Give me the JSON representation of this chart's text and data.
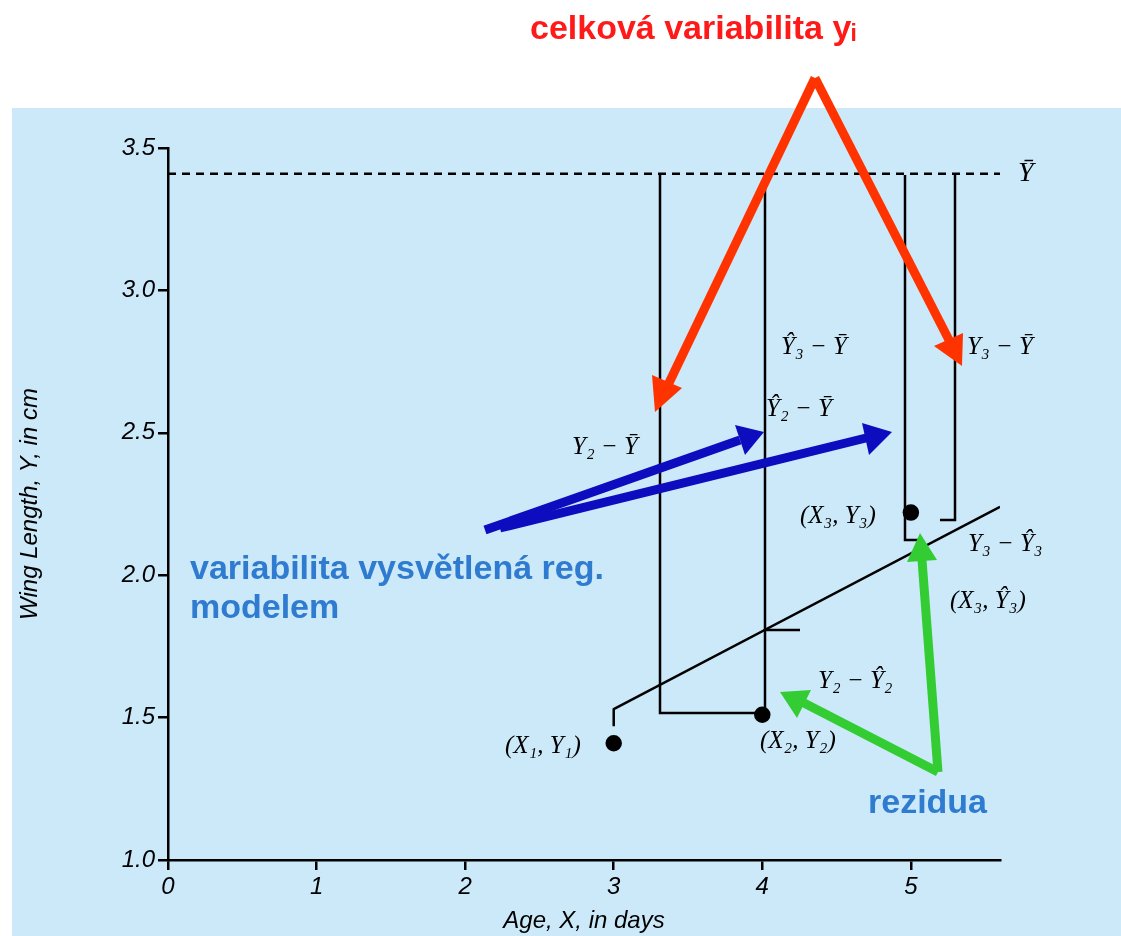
{
  "chart_data": {
    "type": "scatter",
    "title": "celková variabilita yᵢ",
    "xlabel": "Age, X, in days",
    "ylabel": "Wing Length, Y, in cm",
    "xlim": [
      0,
      5.6
    ],
    "ylim": [
      1.0,
      3.5
    ],
    "xticks": [
      0,
      1,
      2,
      3,
      4,
      5
    ],
    "yticks": [
      {
        "value": 1,
        "label": "1.0"
      },
      {
        "value": 1.5,
        "label": "1.5"
      },
      {
        "value": 2,
        "label": "2.0"
      },
      {
        "value": 2.5,
        "label": "2.5"
      },
      {
        "value": 3,
        "label": "3.0"
      },
      {
        "value": 3.5,
        "label": "3.5"
      }
    ],
    "grid": false,
    "legend": false,
    "series": [
      {
        "color": "#000000",
        "marker": "circle",
        "x": [
          3,
          4,
          5
        ],
        "values": [
          1.41,
          1.51,
          2.22
        ]
      },
      {
        "type": "line",
        "color": "#000000",
        "x": [
          3,
          3,
          5.6
        ],
        "values": [
          1.47,
          1.53,
          2.24
        ]
      },
      {
        "type": "line",
        "name": "Ȳ",
        "color": "#000000",
        "line_style": "dashed",
        "x": [
          0,
          5.6
        ],
        "values": [
          3.41,
          3.41
        ]
      }
    ],
    "annotations": [
      "Y₂ − Ȳ",
      "Ŷ₃ − Ȳ",
      "Ŷ₂ − Ȳ",
      "Y₃ − Ȳ",
      "Y₃ − Ŷ₃",
      "Y₂ − Ŷ₂",
      "(X₁, Y₁)",
      "(X₂, Y₂)",
      "(X₃, Y₃)",
      "(X₃, Ŷ₃)",
      "variabilita vysvětlená reg. modelem",
      "rezidua"
    ]
  }
}
